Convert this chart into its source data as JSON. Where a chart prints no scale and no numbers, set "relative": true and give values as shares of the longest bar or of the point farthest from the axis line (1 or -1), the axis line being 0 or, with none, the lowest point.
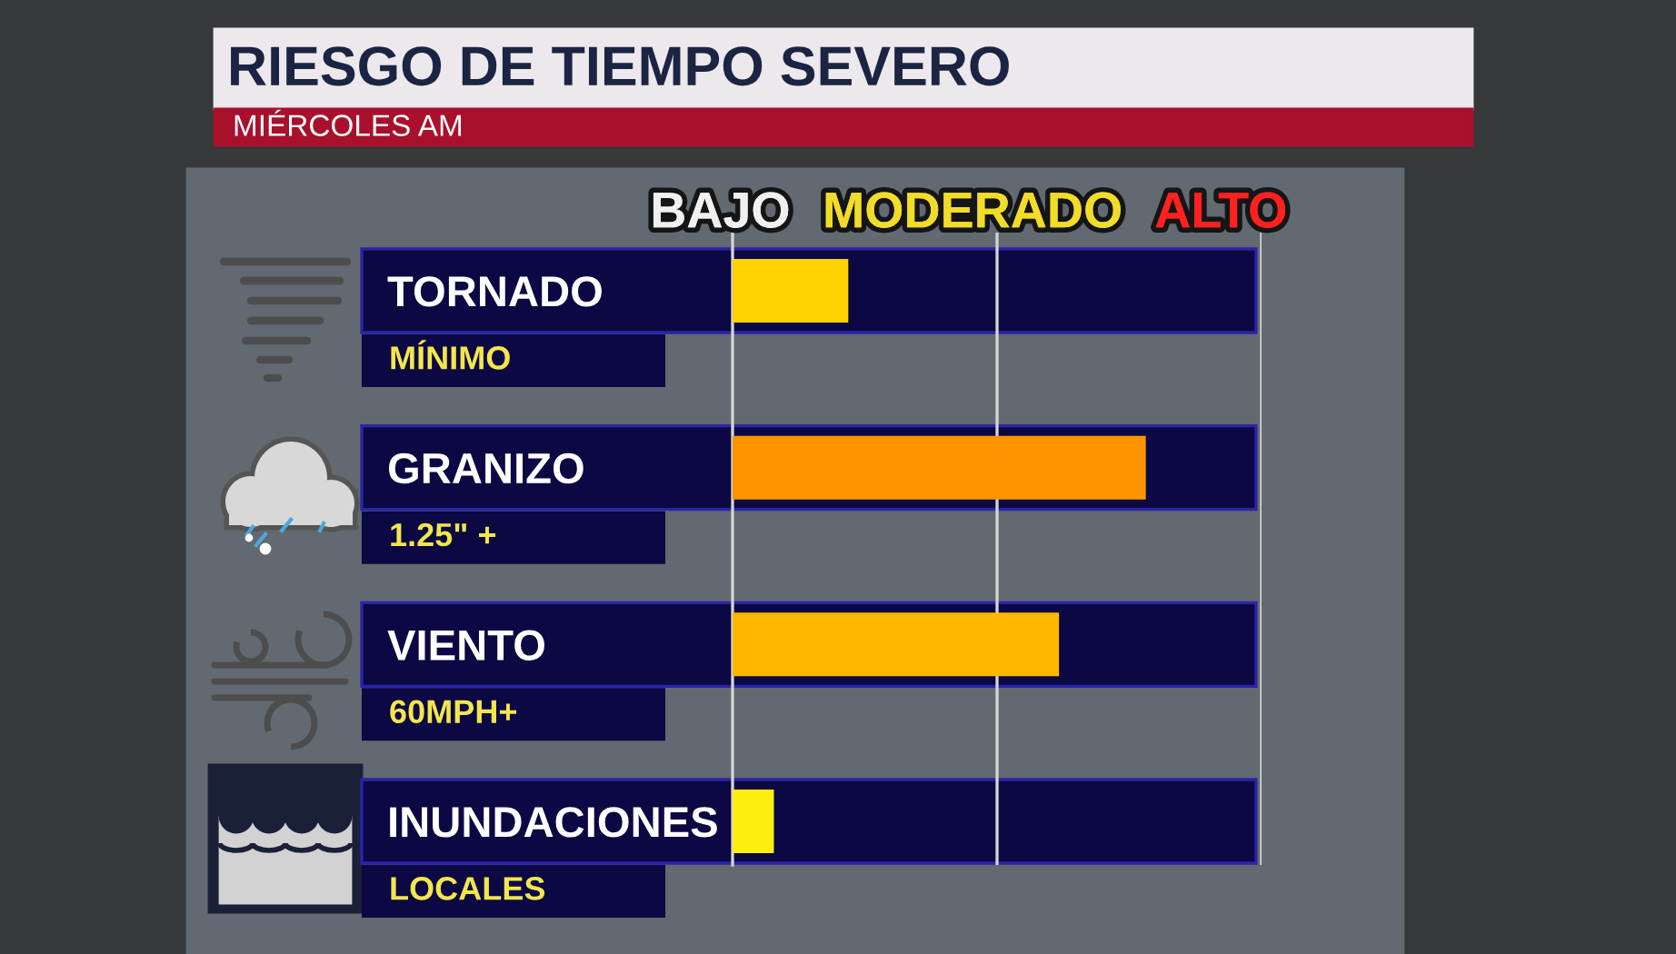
{
  "chart_data": {
    "type": "bar",
    "orientation": "horizontal",
    "relative": true,
    "title": "RIESGO DE TIEMPO SEVERO",
    "subtitle": "MIÉRCOLES AM",
    "categories": [
      "TORNADO",
      "GRANIZO",
      "VIENTO",
      "INUNDACIONES"
    ],
    "values": [
      0.28,
      1,
      0.79,
      0.1
    ],
    "colors": [
      "#ffd200",
      "#ff9400",
      "#ffb800",
      "#ffee10"
    ],
    "ref_lines": [
      {
        "axis": "x",
        "value": 0.64,
        "color": "#d4d4d4"
      },
      {
        "axis": "x",
        "value": 1.28,
        "color": "#d4d4d4"
      }
    ],
    "annotations": [
      "BAJO",
      "MODERADO",
      "ALTO",
      "MÍNIMO",
      "1.25\" +",
      "60MPH+",
      "LOCALES"
    ]
  }
}
